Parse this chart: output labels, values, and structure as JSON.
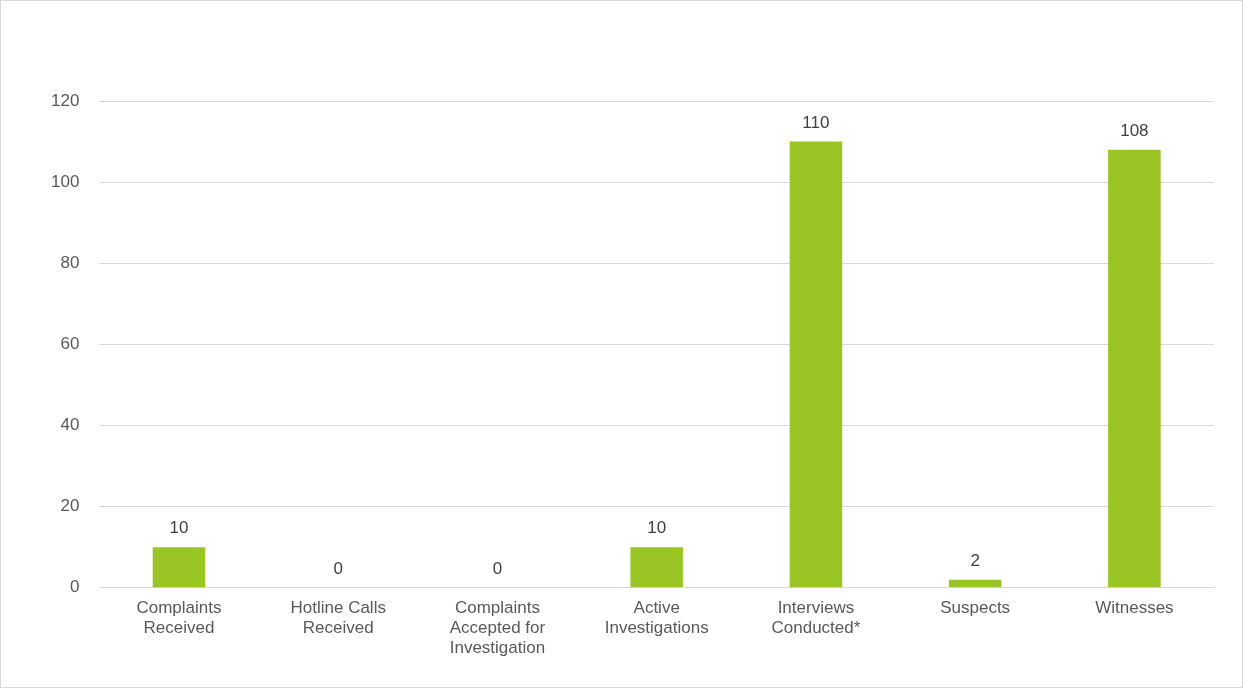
{
  "chart_data": {
    "type": "bar",
    "categories": [
      "Complaints Received",
      "Hotline Calls Received",
      "Complaints Accepted for Investigation",
      "Active Investigations",
      "Interviews Conducted*",
      "Suspects",
      "Witnesses"
    ],
    "values": [
      10,
      0,
      0,
      10,
      110,
      2,
      108
    ],
    "color": "#99c624",
    "ylim": [
      0,
      120
    ],
    "yticks": [
      0,
      20,
      40,
      60,
      80,
      100,
      120
    ],
    "grid": "y",
    "data_labels": true,
    "legend": false
  }
}
